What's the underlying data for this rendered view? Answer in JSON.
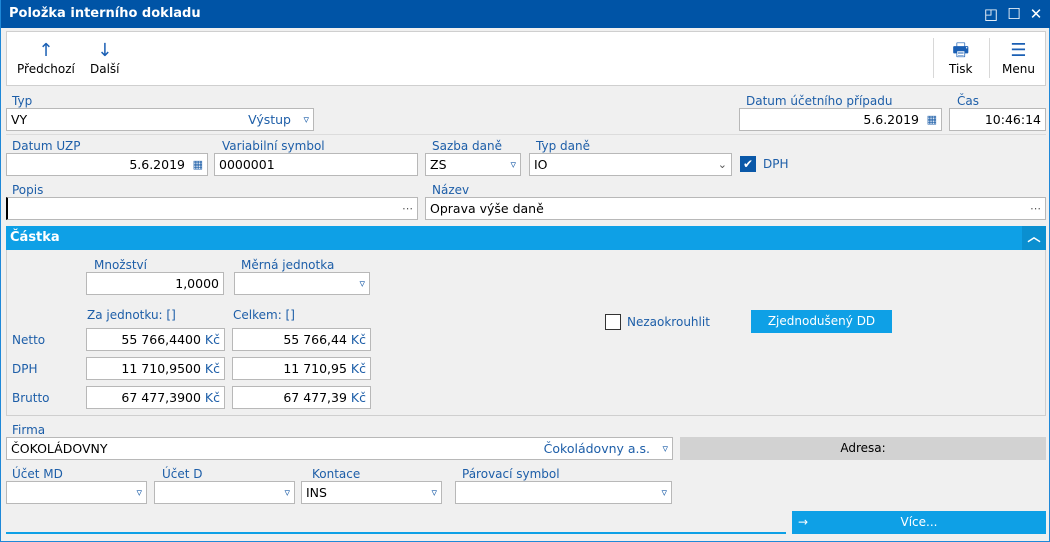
{
  "window": {
    "title": "Položka interního dokladu"
  },
  "toolbar": {
    "prev": "Předchozí",
    "next": "Další",
    "print": "Tisk",
    "menu": "Menu"
  },
  "form": {
    "typ": {
      "label": "Typ",
      "value": "VY",
      "suffix": "Výstup"
    },
    "datum_ucetniho_pripadu": {
      "label": "Datum účetního případu",
      "value": "5.6.2019"
    },
    "cas": {
      "label": "Čas",
      "value": "10:46:14"
    },
    "datum_uzp": {
      "label": "Datum UZP",
      "value": "5.6.2019"
    },
    "variabilni_symbol": {
      "label": "Variabilní symbol",
      "value": "0000001"
    },
    "sazba_dane": {
      "label": "Sazba daně",
      "value": "ZS"
    },
    "typ_dane": {
      "label": "Typ daně",
      "value": "IO"
    },
    "dph_checkbox": {
      "label": "DPH",
      "checked": true
    },
    "popis": {
      "label": "Popis",
      "value": ""
    },
    "nazev": {
      "label": "Název",
      "value": "Oprava výše daně"
    }
  },
  "castka": {
    "title": "Částka",
    "mnozstvi": {
      "label": "Množství",
      "value": "1,0000"
    },
    "merna_jednotka": {
      "label": "Měrná jednotka",
      "value": ""
    },
    "za_jednotku_label": "Za jednotku: []",
    "celkem_label": "Celkem: []",
    "currency": "Kč",
    "rows": [
      {
        "label": "Netto",
        "unit": "55 766,4400",
        "total": "55 766,44"
      },
      {
        "label": "DPH",
        "unit": "11 710,9500",
        "total": "11 710,95"
      },
      {
        "label": "Brutto",
        "unit": "67 477,3900",
        "total": "67 477,39"
      }
    ],
    "nezaokrouhlit": {
      "label": "Nezaokrouhlit",
      "checked": false
    },
    "zjednoduseny_button": "Zjednodušený DD"
  },
  "firma": {
    "label": "Firma",
    "value": "ČOKOLÁDOVNY",
    "suffix": "Čokoládovny a.s.",
    "adresa_button": "Adresa:"
  },
  "bottom": {
    "ucet_md": {
      "label": "Účet MD",
      "value": ""
    },
    "ucet_d": {
      "label": "Účet D",
      "value": ""
    },
    "kontace": {
      "label": "Kontace",
      "value": "INS"
    },
    "parovaci_symbol": {
      "label": "Párovací symbol",
      "value": ""
    },
    "vice_button": "Více..."
  },
  "colors": {
    "titlebar": "#0054a6",
    "accent": "#0ea0e6",
    "label": "#1d5ea8"
  }
}
